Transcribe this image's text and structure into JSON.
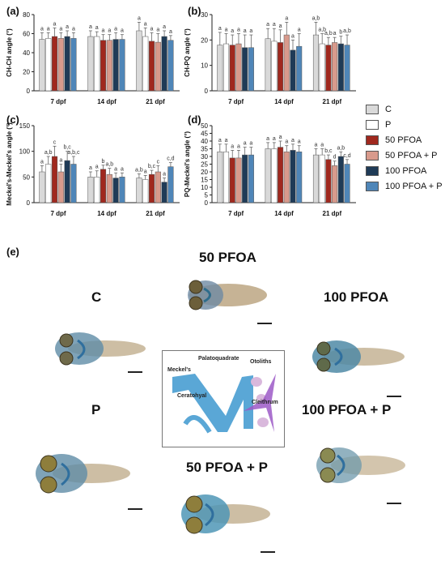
{
  "panels": {
    "a": "(a)",
    "b": "(b)",
    "c": "(c)",
    "d": "(d)",
    "e": "(e)"
  },
  "legend": [
    {
      "label": "C",
      "color": "#d9d9d9"
    },
    {
      "label": "P",
      "color": "#ffffff"
    },
    {
      "label": "50 PFOA",
      "color": "#a0281e"
    },
    {
      "label": "50 PFOA + P",
      "color": "#d89a8c"
    },
    {
      "label": "100 PFOA",
      "color": "#1f3b57"
    },
    {
      "label": "100 PFOA + P",
      "color": "#4f86b8"
    }
  ],
  "chart_data": [
    {
      "type": "bar",
      "ylabel": "CH-CH angle (°)",
      "categories": [
        "7 dpf",
        "14 dpf",
        "21 dpf"
      ],
      "ylim": [
        0,
        80
      ],
      "yticks": [
        0,
        20,
        40,
        60,
        80
      ],
      "series": [
        {
          "name": "C",
          "values": [
            54,
            57,
            63
          ],
          "errors": [
            7,
            6,
            9
          ]
        },
        {
          "name": "P",
          "values": [
            55,
            57,
            57
          ],
          "errors": [
            6,
            5,
            9
          ]
        },
        {
          "name": "50 PFOA",
          "values": [
            57,
            53,
            52
          ],
          "errors": [
            9,
            6,
            9
          ]
        },
        {
          "name": "50 PFOA + P",
          "values": [
            55,
            53,
            51
          ],
          "errors": [
            6,
            6,
            9
          ]
        },
        {
          "name": "100 PFOA",
          "values": [
            57,
            54,
            57
          ],
          "errors": [
            6,
            7,
            6
          ]
        },
        {
          "name": "100 PFOA + P",
          "values": [
            55,
            54,
            53
          ],
          "errors": [
            6,
            5,
            5
          ]
        }
      ],
      "letters": [
        [
          "a",
          "a",
          "a",
          "a",
          "a",
          "a"
        ],
        [
          "a",
          "a",
          "a",
          "a",
          "a",
          "a"
        ],
        [
          "a",
          "a",
          "a",
          "a",
          "a",
          "a"
        ]
      ]
    },
    {
      "type": "bar",
      "ylabel": "CH-PQ angle (°)",
      "categories": [
        "7 dpf",
        "14 dpf",
        "21 dpf"
      ],
      "ylim": [
        0,
        30
      ],
      "yticks": [
        0,
        10,
        20,
        30
      ],
      "series": [
        {
          "name": "C",
          "values": [
            18,
            20.5,
            22
          ],
          "errors": [
            5,
            4,
            5
          ]
        },
        {
          "name": "P",
          "values": [
            18.5,
            19.5,
            18.5
          ],
          "errors": [
            4,
            5,
            4
          ]
        },
        {
          "name": "50 PFOA",
          "values": [
            18,
            19,
            18
          ],
          "errors": [
            4,
            5,
            3
          ]
        },
        {
          "name": "50 PFOA + P",
          "values": [
            18.5,
            22,
            19
          ],
          "errors": [
            4,
            5,
            2
          ]
        },
        {
          "name": "100 PFOA",
          "values": [
            17,
            16,
            18.5
          ],
          "errors": [
            5,
            4,
            3
          ]
        },
        {
          "name": "100 PFOA + P",
          "values": [
            17,
            17.5,
            18
          ],
          "errors": [
            5,
            5,
            4
          ]
        }
      ],
      "letters": [
        [
          "a",
          "a",
          "a",
          "a",
          "a",
          "a"
        ],
        [
          "a",
          "a",
          "a",
          "a",
          "a",
          "a"
        ],
        [
          "a,b",
          "a,b",
          "a,b",
          "a",
          "b",
          "a,b"
        ]
      ]
    },
    {
      "type": "bar",
      "ylabel": "Meckel's-Meckel's angle (°)",
      "categories": [
        "7 dpf",
        "14 dpf",
        "21 dpf"
      ],
      "ylim": [
        0,
        150
      ],
      "yticks": [
        0,
        50,
        100,
        150
      ],
      "series": [
        {
          "name": "C",
          "values": [
            60,
            50,
            48
          ],
          "errors": [
            12,
            10,
            8
          ]
        },
        {
          "name": "P",
          "values": [
            75,
            50,
            45
          ],
          "errors": [
            15,
            12,
            8
          ]
        },
        {
          "name": "50 PFOA",
          "values": [
            90,
            65,
            55
          ],
          "errors": [
            20,
            8,
            8
          ]
        },
        {
          "name": "50 PFOA + P",
          "values": [
            60,
            55,
            60
          ],
          "errors": [
            15,
            12,
            12
          ]
        },
        {
          "name": "100 PFOA",
          "values": [
            82,
            48,
            40
          ],
          "errors": [
            18,
            10,
            8
          ]
        },
        {
          "name": "100 PFOA + P",
          "values": [
            75,
            50,
            70
          ],
          "errors": [
            15,
            8,
            8
          ]
        }
      ],
      "letters": [
        [
          "a",
          "a,b",
          "c",
          "a",
          "b,c",
          "a,b,c"
        ],
        [
          "a",
          "a",
          "b",
          "a,b",
          "a",
          "a"
        ],
        [
          "a,b",
          "a",
          "b,c",
          "c",
          "a",
          "c,d"
        ]
      ]
    },
    {
      "type": "bar",
      "ylabel": "PQ-Meckel's angle (°)",
      "categories": [
        "7 dpf",
        "14 dpf",
        "21 dpf"
      ],
      "ylim": [
        0,
        50
      ],
      "yticks": [
        0,
        5,
        10,
        15,
        20,
        25,
        30,
        35,
        40,
        45,
        50
      ],
      "series": [
        {
          "name": "C",
          "values": [
            33,
            35,
            31
          ],
          "errors": [
            5,
            4,
            4
          ]
        },
        {
          "name": "P",
          "values": [
            33,
            35,
            31
          ],
          "errors": [
            5,
            4,
            4
          ]
        },
        {
          "name": "50 PFOA",
          "values": [
            29,
            36,
            28
          ],
          "errors": [
            5,
            4,
            3
          ]
        },
        {
          "name": "50 PFOA + P",
          "values": [
            29,
            33,
            24
          ],
          "errors": [
            5,
            4,
            3
          ]
        },
        {
          "name": "100 PFOA",
          "values": [
            31,
            34,
            30
          ],
          "errors": [
            5,
            4,
            3
          ]
        },
        {
          "name": "100 PFOA + P",
          "values": [
            31,
            33,
            25
          ],
          "errors": [
            5,
            4,
            3
          ]
        }
      ],
      "letters": [
        [
          "a",
          "a",
          "a",
          "a",
          "a",
          "a"
        ],
        [
          "a",
          "a",
          "a",
          "a",
          "a",
          "a"
        ],
        [
          "a",
          "a",
          "b,c",
          "d",
          "a,b",
          "c,d"
        ]
      ]
    }
  ],
  "photos": {
    "title_top": "50 PFOA",
    "label_c": "C",
    "label_100": "100 PFOA",
    "label_p": "P",
    "label_100p": "100 PFOA + P",
    "label_50p": "50 PFOA + P"
  },
  "schematic": {
    "palatoquadrate": "Palatoquadrate",
    "otoliths": "Otoliths",
    "meckels": "Meckel's",
    "ceratohyal": "Ceratohyal",
    "cleithrum": "Cleithrum"
  }
}
